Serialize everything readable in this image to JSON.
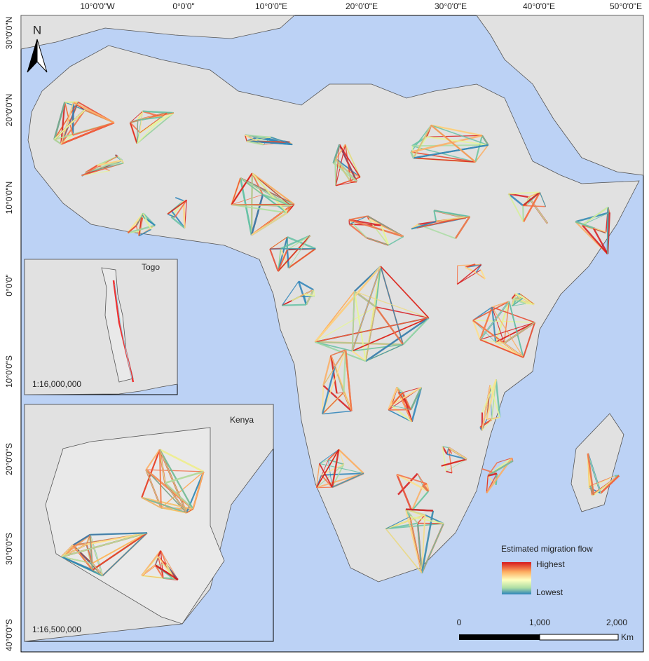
{
  "map": {
    "longitude_labels": [
      "10°0'0\"W",
      "0°0'0\"",
      "10°0'0\"E",
      "20°0'0\"E",
      "30°0'0\"E",
      "40°0'0\"E",
      "50°0'0\"E"
    ],
    "latitude_labels": [
      "30°0'0\"N",
      "20°0'0\"N",
      "10°0'0\"N",
      "0°0'0\"",
      "10°0'0\"S",
      "20°0'0\"S",
      "30°0'0\"S",
      "40°0'0\"S"
    ],
    "north_arrow": "N",
    "insets": [
      {
        "title": "Togo",
        "scale": "1:16,000,000"
      },
      {
        "title": "Kenya",
        "scale": "1:16,500,000"
      }
    ],
    "legend": {
      "title": "Estimated migration flow",
      "high": "Highest",
      "low": "Lowest"
    },
    "scale_bar": {
      "labels": [
        "0",
        "1,000",
        "2,000"
      ],
      "unit": "Km"
    }
  }
}
